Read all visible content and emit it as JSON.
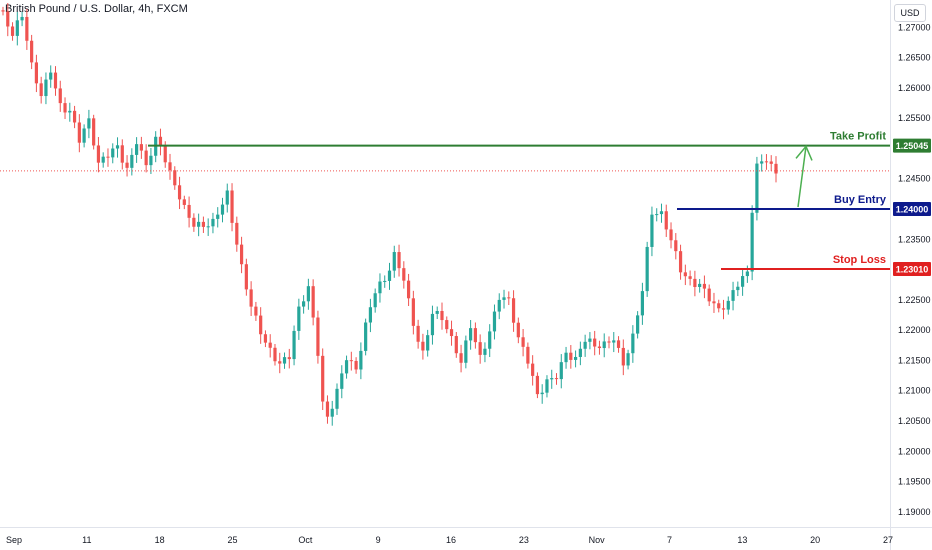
{
  "header": {
    "title": "British Pound / U.S. Dollar, 4h, FXCM",
    "currency": "USD"
  },
  "chart_data": {
    "type": "candlestick",
    "ylim": [
      1.1875,
      1.2745
    ],
    "y_ticks": [
      "1.19000",
      "1.19500",
      "1.20000",
      "1.20500",
      "1.21000",
      "1.21500",
      "1.22000",
      "1.22500",
      "1.23000",
      "1.23500",
      "1.24000",
      "1.24500",
      "1.25000",
      "1.25500",
      "1.26000",
      "1.26500",
      "1.27000"
    ],
    "x_ticks": [
      "Sep",
      "11",
      "18",
      "25",
      "Oct",
      "9",
      "16",
      "23",
      "Nov",
      "7",
      "13",
      "20",
      "27"
    ],
    "price_path": [
      [
        0,
        1.272
      ],
      [
        2,
        1.268
      ],
      [
        4,
        1.271
      ],
      [
        6,
        1.263
      ],
      [
        8,
        1.259
      ],
      [
        10,
        1.264
      ],
      [
        12,
        1.258
      ],
      [
        14,
        1.2565
      ],
      [
        16,
        1.251
      ],
      [
        18,
        1.2535
      ],
      [
        20,
        1.2465
      ],
      [
        22,
        1.249
      ],
      [
        24,
        1.251
      ],
      [
        26,
        1.2475
      ],
      [
        28,
        1.252
      ],
      [
        30,
        1.247
      ],
      [
        32,
        1.2505
      ],
      [
        33,
        1.2493
      ],
      [
        35,
        1.245
      ],
      [
        38,
        1.2405
      ],
      [
        40,
        1.2385
      ],
      [
        44,
        1.238
      ],
      [
        47,
        1.2415
      ],
      [
        48,
        1.237
      ],
      [
        50,
        1.2295
      ],
      [
        52,
        1.224
      ],
      [
        55,
        1.219
      ],
      [
        58,
        1.215
      ],
      [
        60,
        1.2155
      ],
      [
        62,
        1.2225
      ],
      [
        64,
        1.226
      ],
      [
        66,
        1.216
      ],
      [
        67,
        1.208
      ],
      [
        68,
        1.206
      ],
      [
        70,
        1.211
      ],
      [
        72,
        1.2165
      ],
      [
        74,
        1.2135
      ],
      [
        76,
        1.22
      ],
      [
        78,
        1.2255
      ],
      [
        80,
        1.2275
      ],
      [
        82,
        1.2325
      ],
      [
        84,
        1.2295
      ],
      [
        86,
        1.222
      ],
      [
        88,
        1.2165
      ],
      [
        90,
        1.2225
      ],
      [
        92,
        1.221
      ],
      [
        94,
        1.2175
      ],
      [
        96,
        1.2145
      ],
      [
        98,
        1.2215
      ],
      [
        100,
        1.2165
      ],
      [
        102,
        1.2205
      ],
      [
        104,
        1.2255
      ],
      [
        106,
        1.224
      ],
      [
        108,
        1.2175
      ],
      [
        110,
        1.2145
      ],
      [
        112,
        1.2095
      ],
      [
        114,
        1.2125
      ],
      [
        116,
        1.2135
      ],
      [
        118,
        1.2165
      ],
      [
        120,
        1.2145
      ],
      [
        122,
        1.2175
      ],
      [
        124,
        1.2165
      ],
      [
        126,
        1.2175
      ],
      [
        128,
        1.2195
      ],
      [
        130,
        1.2155
      ],
      [
        132,
        1.2195
      ],
      [
        134,
        1.2265
      ],
      [
        136,
        1.2385
      ],
      [
        138,
        1.238
      ],
      [
        140,
        1.2345
      ],
      [
        142,
        1.2305
      ],
      [
        144,
        1.229
      ],
      [
        146,
        1.2285
      ],
      [
        148,
        1.2255
      ],
      [
        150,
        1.2225
      ],
      [
        152,
        1.2235
      ],
      [
        154,
        1.227
      ],
      [
        156,
        1.2295
      ],
      [
        157,
        1.2405
      ],
      [
        158,
        1.248
      ],
      [
        160,
        1.2495
      ],
      [
        162,
        1.2463
      ]
    ],
    "levels": [
      {
        "name": "Take Profit",
        "value": "1.25045",
        "color": "#2e7d32"
      },
      {
        "name": "Buy Entry",
        "value": "1.24000",
        "color": "#0d1a8c"
      },
      {
        "name": "Stop Loss",
        "value": "1.23010",
        "color": "#e02020"
      }
    ],
    "last_price": 1.2463,
    "arrow": {
      "from": [
        1.24
      ],
      "to": [
        1.25
      ]
    },
    "bull_color": "#26a69a",
    "bear_color": "#ef5350"
  }
}
